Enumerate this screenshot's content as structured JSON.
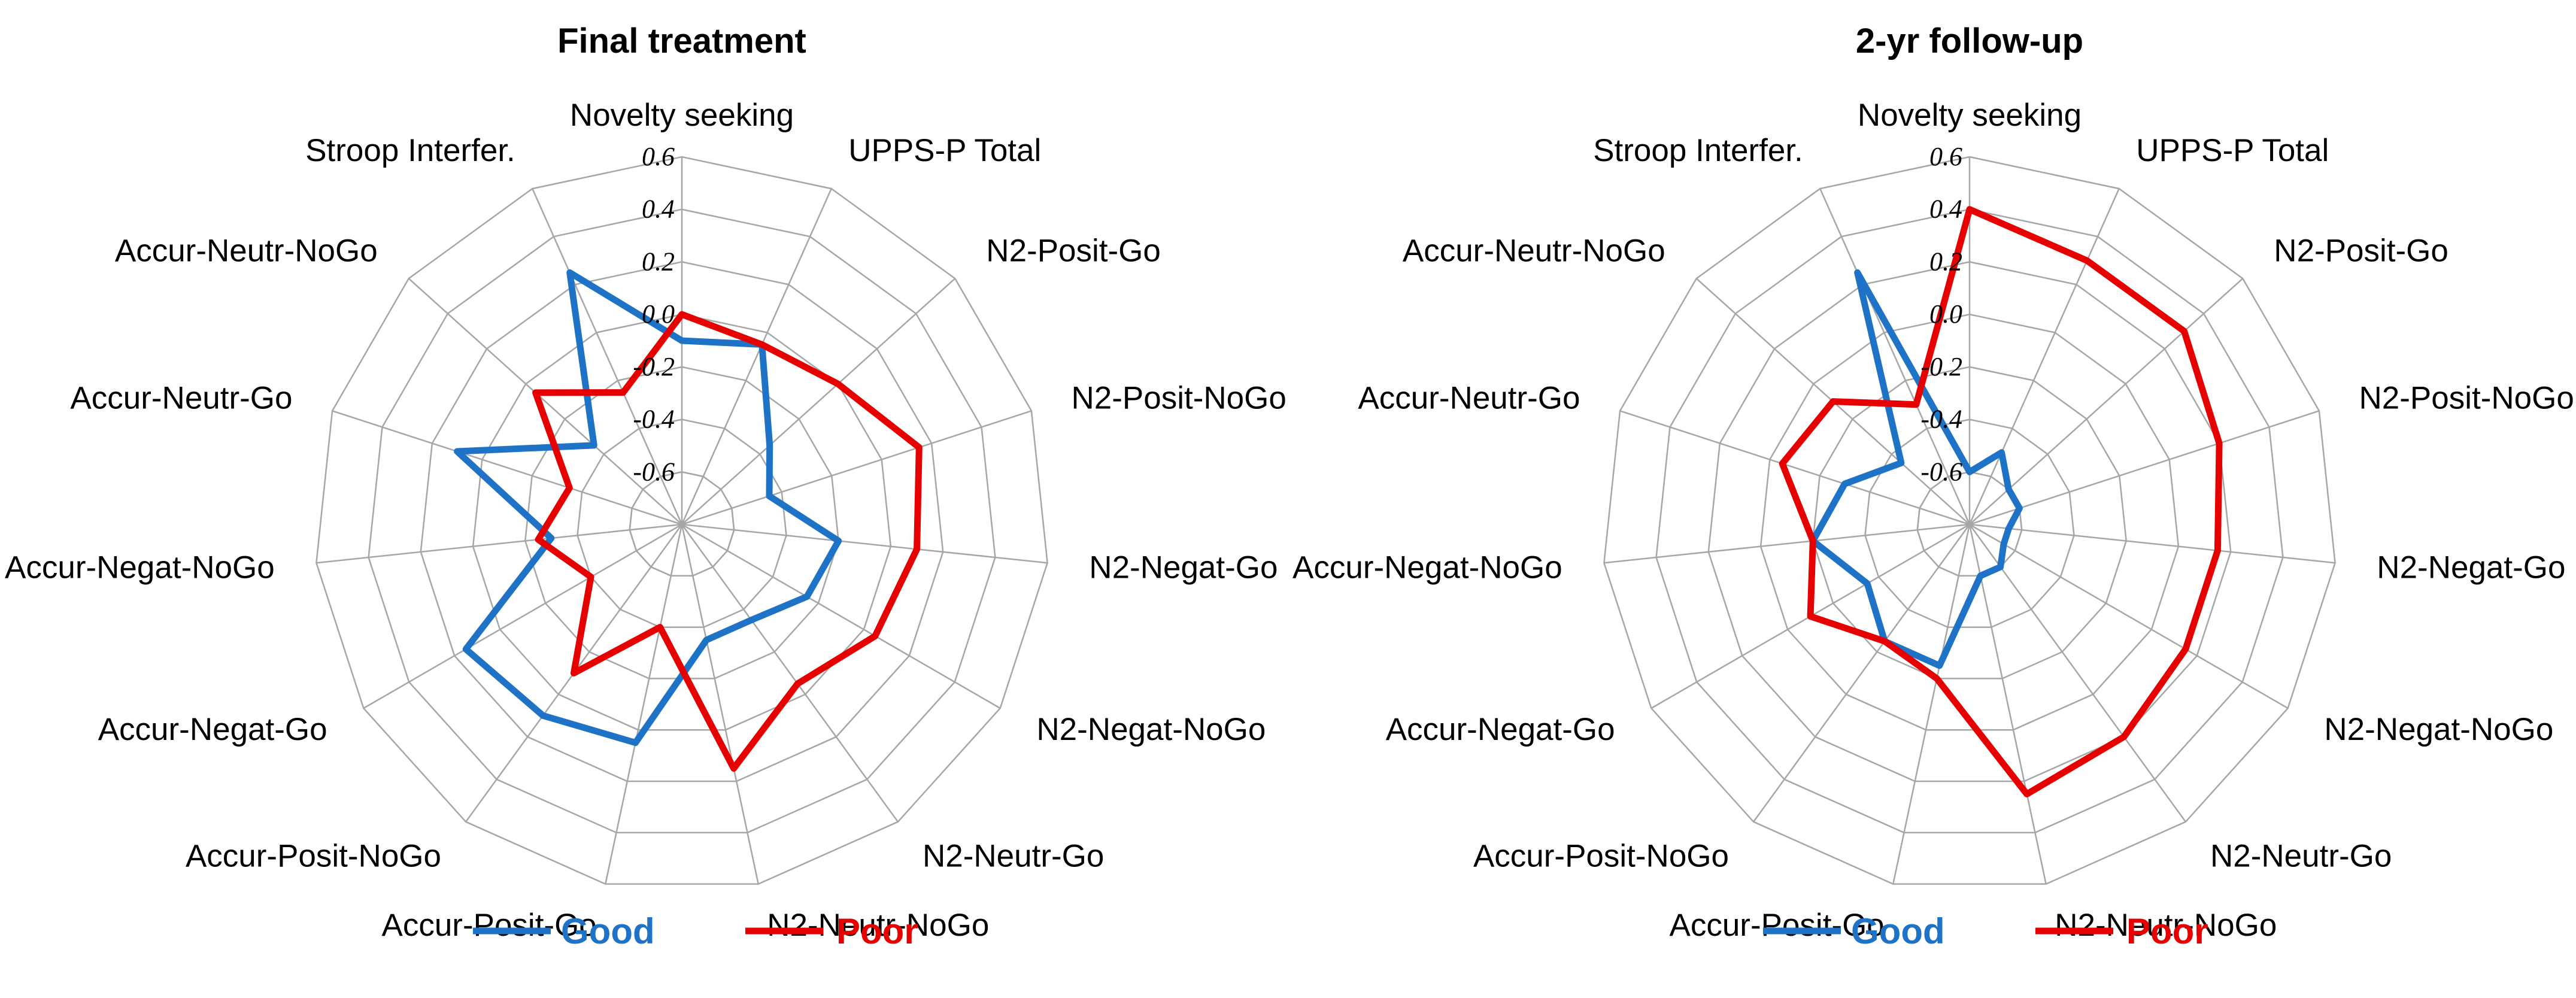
{
  "chart_data": [
    {
      "type": "radar",
      "title": "Final treatment",
      "axes": [
        "Novelty seeking",
        "UPPS-P Total",
        "N2-Posit-Go",
        "N2-Posit-NoGo",
        "N2-Negat-Go",
        "N2-Negat-NoGo",
        "N2-Neutr-Go",
        "N2-Neutr-NoGo",
        "Accur-Posit-Go",
        "Accur-Posit-NoGo",
        "Accur-Negat-Go",
        "Accur-Negat-NoGo",
        "Accur-Neutr-Go",
        "Accur-Neutr-NoGo",
        "Stroop Interfer."
      ],
      "rlim": [
        -0.8,
        0.6
      ],
      "ticks": [
        "0.6",
        "0.4",
        "0.2",
        "0.0",
        "-0.2",
        "-0.4",
        "-0.6"
      ],
      "tick_values": [
        0.6,
        0.4,
        0.2,
        0.0,
        -0.2,
        -0.4,
        -0.6
      ],
      "series": [
        {
          "name": "Good",
          "color": "#1f73c6",
          "values": [
            -0.1,
            -0.05,
            -0.35,
            -0.45,
            -0.2,
            -0.25,
            -0.35,
            -0.35,
            0.05,
            0.1,
            0.15,
            -0.3,
            0.1,
            -0.35,
            0.25
          ]
        },
        {
          "name": "Poor",
          "color": "#e60000",
          "values": [
            0.0,
            -0.05,
            0.0,
            0.15,
            0.1,
            0.05,
            -0.05,
            0.15,
            -0.4,
            -0.1,
            -0.4,
            -0.25,
            -0.35,
            -0.05,
            -0.25
          ]
        }
      ]
    },
    {
      "type": "radar",
      "title": "2-yr follow-up",
      "axes": [
        "Novelty seeking",
        "UPPS-P Total",
        "N2-Posit-Go",
        "N2-Posit-NoGo",
        "N2-Negat-Go",
        "N2-Negat-NoGo",
        "N2-Neutr-Go",
        "N2-Neutr-NoGo",
        "Accur-Posit-Go",
        "Accur-Posit-NoGo",
        "Accur-Negat-Go",
        "Accur-Negat-NoGo",
        "Accur-Neutr-Go",
        "Accur-Neutr-NoGo",
        "Stroop Interfer."
      ],
      "rlim": [
        -0.8,
        0.6
      ],
      "ticks": [
        "0.6",
        "0.4",
        "0.2",
        "0.0",
        "-0.2",
        "-0.4",
        "-0.6"
      ],
      "tick_values": [
        0.6,
        0.4,
        0.2,
        0.0,
        -0.2,
        -0.4,
        -0.6
      ],
      "series": [
        {
          "name": "Good",
          "color": "#1f73c6",
          "values": [
            -0.6,
            -0.5,
            -0.6,
            -0.6,
            -0.65,
            -0.65,
            -0.6,
            -0.6,
            -0.25,
            -0.25,
            -0.35,
            -0.2,
            -0.3,
            -0.45,
            0.25
          ]
        },
        {
          "name": "Poor",
          "color": "#e60000",
          "values": [
            0.4,
            0.3,
            0.3,
            0.2,
            0.15,
            0.15,
            0.2,
            0.25,
            -0.2,
            -0.25,
            -0.1,
            -0.2,
            -0.05,
            -0.1,
            -0.3
          ]
        }
      ]
    }
  ],
  "legend": [
    {
      "name": "Good",
      "color": "#1f73c6"
    },
    {
      "name": "Poor",
      "color": "#e60000"
    }
  ]
}
